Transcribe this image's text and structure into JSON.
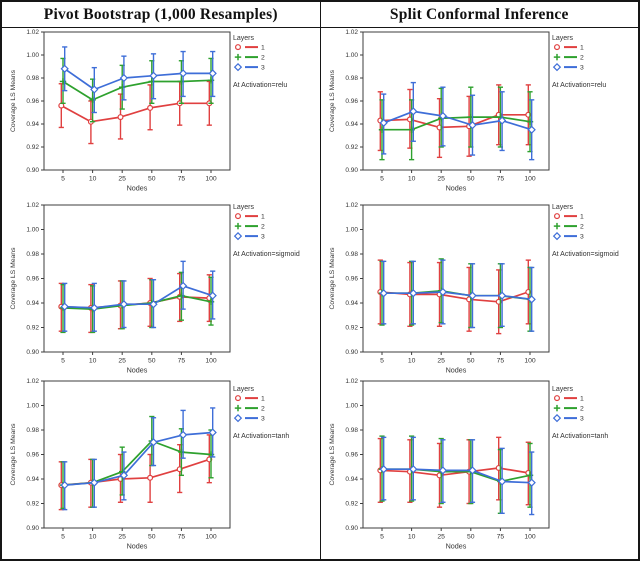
{
  "header": {
    "left_title": "Pivot Bootstrap (1,000 Resamples)",
    "right_title": "Split Conformal Inference"
  },
  "colors": {
    "layer1": "#e04040",
    "layer2": "#2ea12e",
    "layer3": "#3e6ed8",
    "axis": "#3d3d3d",
    "text": "#333333"
  },
  "chart_data": [
    {
      "type": "line",
      "error_bars": true,
      "column": "Pivot Bootstrap (1,000 Resamples)",
      "annotation": "At Activation=relu",
      "legend_title": "Layers",
      "xlabel": "Nodes",
      "ylabel": "Coverage LS Means",
      "categories": [
        "5",
        "10",
        "25",
        "50",
        "75",
        "100"
      ],
      "ylim": [
        0.9,
        1.02
      ],
      "yticks": [
        0.9,
        0.92,
        0.94,
        0.96,
        0.98,
        1.0,
        1.02
      ],
      "series": [
        {
          "name": "1",
          "marker": "circle",
          "color": "#e04040",
          "values": [
            0.956,
            0.942,
            0.946,
            0.954,
            0.958,
            0.958
          ],
          "err_low": [
            0.937,
            0.923,
            0.927,
            0.935,
            0.939,
            0.939
          ],
          "err_high": [
            0.975,
            0.96,
            0.966,
            0.974,
            0.977,
            0.977
          ]
        },
        {
          "name": "2",
          "marker": "plus",
          "color": "#2ea12e",
          "values": [
            0.977,
            0.961,
            0.972,
            0.977,
            0.977,
            0.978
          ],
          "err_low": [
            0.958,
            0.942,
            0.953,
            0.958,
            0.958,
            0.958
          ],
          "err_high": [
            0.997,
            0.979,
            0.991,
            0.995,
            0.995,
            0.997
          ]
        },
        {
          "name": "3",
          "marker": "diamond",
          "color": "#3e6ed8",
          "values": [
            0.988,
            0.97,
            0.98,
            0.982,
            0.984,
            0.984
          ],
          "err_low": [
            0.969,
            0.95,
            0.961,
            0.962,
            0.964,
            0.964
          ],
          "err_high": [
            1.007,
            0.989,
            0.999,
            1.001,
            1.003,
            1.003
          ]
        }
      ]
    },
    {
      "type": "line",
      "error_bars": true,
      "column": "Split Conformal Inference",
      "annotation": "At Activation=relu",
      "legend_title": "Layers",
      "xlabel": "Nodes",
      "ylabel": "Coverage LS Means",
      "categories": [
        "5",
        "10",
        "25",
        "50",
        "75",
        "100"
      ],
      "ylim": [
        0.9,
        1.02
      ],
      "yticks": [
        0.9,
        0.92,
        0.94,
        0.96,
        0.98,
        1.0,
        1.02
      ],
      "series": [
        {
          "name": "1",
          "marker": "circle",
          "color": "#e04040",
          "values": [
            0.943,
            0.944,
            0.937,
            0.938,
            0.948,
            0.948
          ],
          "err_low": [
            0.917,
            0.919,
            0.911,
            0.912,
            0.922,
            0.922
          ],
          "err_high": [
            0.968,
            0.97,
            0.962,
            0.964,
            0.974,
            0.974
          ]
        },
        {
          "name": "2",
          "marker": "plus",
          "color": "#2ea12e",
          "values": [
            0.935,
            0.935,
            0.945,
            0.946,
            0.946,
            0.942
          ],
          "err_low": [
            0.909,
            0.909,
            0.92,
            0.92,
            0.92,
            0.916
          ],
          "err_high": [
            0.961,
            0.961,
            0.971,
            0.972,
            0.972,
            0.968
          ]
        },
        {
          "name": "3",
          "marker": "diamond",
          "color": "#3e6ed8",
          "values": [
            0.941,
            0.951,
            0.947,
            0.939,
            0.943,
            0.935
          ],
          "err_low": [
            0.914,
            0.925,
            0.921,
            0.913,
            0.917,
            0.909
          ],
          "err_high": [
            0.966,
            0.976,
            0.972,
            0.965,
            0.968,
            0.961
          ]
        }
      ]
    },
    {
      "type": "line",
      "error_bars": true,
      "column": "Pivot Bootstrap (1,000 Resamples)",
      "annotation": "At Activation=sigmoid",
      "legend_title": "Layers",
      "xlabel": "Nodes",
      "ylabel": "Coverage LS Means",
      "categories": [
        "5",
        "10",
        "25",
        "50",
        "75",
        "100"
      ],
      "ylim": [
        0.9,
        1.02
      ],
      "yticks": [
        0.9,
        0.92,
        0.94,
        0.96,
        0.98,
        1.0,
        1.02
      ],
      "series": [
        {
          "name": "1",
          "marker": "circle",
          "color": "#e04040",
          "values": [
            0.937,
            0.936,
            0.938,
            0.94,
            0.945,
            0.944
          ],
          "err_low": [
            0.917,
            0.916,
            0.919,
            0.921,
            0.925,
            0.925
          ],
          "err_high": [
            0.956,
            0.955,
            0.958,
            0.96,
            0.964,
            0.963
          ]
        },
        {
          "name": "2",
          "marker": "plus",
          "color": "#2ea12e",
          "values": [
            0.936,
            0.935,
            0.938,
            0.94,
            0.946,
            0.941
          ],
          "err_low": [
            0.916,
            0.916,
            0.919,
            0.92,
            0.926,
            0.922
          ],
          "err_high": [
            0.955,
            0.954,
            0.958,
            0.959,
            0.965,
            0.961
          ]
        },
        {
          "name": "3",
          "marker": "diamond",
          "color": "#3e6ed8",
          "values": [
            0.937,
            0.936,
            0.939,
            0.939,
            0.954,
            0.946
          ],
          "err_low": [
            0.917,
            0.917,
            0.92,
            0.92,
            0.935,
            0.927
          ],
          "err_high": [
            0.956,
            0.956,
            0.958,
            0.959,
            0.974,
            0.966
          ]
        }
      ]
    },
    {
      "type": "line",
      "error_bars": true,
      "column": "Split Conformal Inference",
      "annotation": "At Activation=sigmoid",
      "legend_title": "Layers",
      "xlabel": "Nodes",
      "ylabel": "Coverage LS Means",
      "categories": [
        "5",
        "10",
        "25",
        "50",
        "75",
        "100"
      ],
      "ylim": [
        0.9,
        1.02
      ],
      "yticks": [
        0.9,
        0.92,
        0.94,
        0.96,
        0.98,
        1.0,
        1.02
      ],
      "series": [
        {
          "name": "1",
          "marker": "circle",
          "color": "#e04040",
          "values": [
            0.949,
            0.947,
            0.947,
            0.943,
            0.941,
            0.949
          ],
          "err_low": [
            0.923,
            0.921,
            0.921,
            0.917,
            0.915,
            0.923
          ],
          "err_high": [
            0.975,
            0.973,
            0.973,
            0.969,
            0.967,
            0.975
          ]
        },
        {
          "name": "2",
          "marker": "plus",
          "color": "#2ea12e",
          "values": [
            0.948,
            0.948,
            0.95,
            0.946,
            0.946,
            0.943
          ],
          "err_low": [
            0.922,
            0.922,
            0.924,
            0.92,
            0.92,
            0.917
          ],
          "err_high": [
            0.974,
            0.974,
            0.976,
            0.972,
            0.972,
            0.969
          ]
        },
        {
          "name": "3",
          "marker": "diamond",
          "color": "#3e6ed8",
          "values": [
            0.948,
            0.948,
            0.949,
            0.946,
            0.946,
            0.943
          ],
          "err_low": [
            0.923,
            0.923,
            0.923,
            0.92,
            0.921,
            0.917
          ],
          "err_high": [
            0.974,
            0.974,
            0.975,
            0.972,
            0.972,
            0.969
          ]
        }
      ]
    },
    {
      "type": "line",
      "error_bars": true,
      "column": "Pivot Bootstrap (1,000 Resamples)",
      "annotation": "At Activation=tanh",
      "legend_title": "Layers",
      "xlabel": "Nodes",
      "ylabel": "Coverage LS Means",
      "categories": [
        "5",
        "10",
        "25",
        "50",
        "75",
        "100"
      ],
      "ylim": [
        0.9,
        1.02
      ],
      "yticks": [
        0.9,
        0.92,
        0.94,
        0.96,
        0.98,
        1.0,
        1.02
      ],
      "series": [
        {
          "name": "1",
          "marker": "circle",
          "color": "#e04040",
          "values": [
            0.935,
            0.937,
            0.94,
            0.941,
            0.948,
            0.956
          ],
          "err_low": [
            0.915,
            0.917,
            0.921,
            0.921,
            0.929,
            0.937
          ],
          "err_high": [
            0.954,
            0.956,
            0.96,
            0.96,
            0.968,
            0.976
          ]
        },
        {
          "name": "2",
          "marker": "plus",
          "color": "#2ea12e",
          "values": [
            0.935,
            0.937,
            0.946,
            0.971,
            0.962,
            0.96
          ],
          "err_low": [
            0.916,
            0.917,
            0.927,
            0.951,
            0.943,
            0.941
          ],
          "err_high": [
            0.954,
            0.956,
            0.966,
            0.991,
            0.981,
            0.98
          ]
        },
        {
          "name": "3",
          "marker": "diamond",
          "color": "#3e6ed8",
          "values": [
            0.935,
            0.937,
            0.943,
            0.97,
            0.976,
            0.978
          ],
          "err_low": [
            0.915,
            0.917,
            0.923,
            0.951,
            0.957,
            0.958
          ],
          "err_high": [
            0.954,
            0.956,
            0.962,
            0.99,
            0.996,
            0.998
          ]
        }
      ]
    },
    {
      "type": "line",
      "error_bars": true,
      "column": "Split Conformal Inference",
      "annotation": "At Activation=tanh",
      "legend_title": "Layers",
      "xlabel": "Nodes",
      "ylabel": "Coverage LS Means",
      "categories": [
        "5",
        "10",
        "25",
        "50",
        "75",
        "100"
      ],
      "ylim": [
        0.9,
        1.02
      ],
      "yticks": [
        0.9,
        0.92,
        0.94,
        0.96,
        0.98,
        1.0,
        1.02
      ],
      "series": [
        {
          "name": "1",
          "marker": "circle",
          "color": "#e04040",
          "values": [
            0.947,
            0.946,
            0.943,
            0.946,
            0.949,
            0.945
          ],
          "err_low": [
            0.921,
            0.921,
            0.917,
            0.92,
            0.923,
            0.919
          ],
          "err_high": [
            0.973,
            0.972,
            0.969,
            0.972,
            0.974,
            0.97
          ]
        },
        {
          "name": "2",
          "marker": "plus",
          "color": "#2ea12e",
          "values": [
            0.948,
            0.948,
            0.946,
            0.946,
            0.938,
            0.943
          ],
          "err_low": [
            0.922,
            0.922,
            0.92,
            0.92,
            0.912,
            0.917
          ],
          "err_high": [
            0.975,
            0.975,
            0.973,
            0.972,
            0.964,
            0.969
          ]
        },
        {
          "name": "3",
          "marker": "diamond",
          "color": "#3e6ed8",
          "values": [
            0.948,
            0.948,
            0.947,
            0.947,
            0.938,
            0.937
          ],
          "err_low": [
            0.923,
            0.923,
            0.921,
            0.921,
            0.912,
            0.911
          ],
          "err_high": [
            0.974,
            0.974,
            0.972,
            0.972,
            0.965,
            0.962
          ]
        }
      ]
    }
  ]
}
